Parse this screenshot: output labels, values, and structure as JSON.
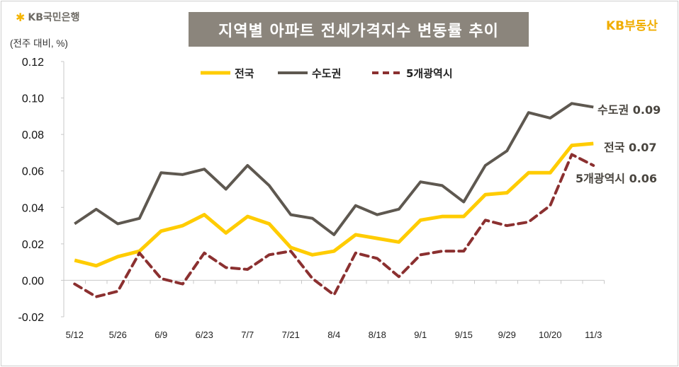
{
  "header": {
    "logo_text": "KB국민은행",
    "title": "지역별 아파트 전세가격지수 변동률 추이",
    "brand": "KB부동산",
    "unit_label": "(전주 대비, %)"
  },
  "colors": {
    "national": "#ffcc00",
    "capital": "#5e5850",
    "metro5": "#8b3030",
    "title_bg": "#8b857c",
    "brand": "#f0ad00"
  },
  "chart_data": {
    "type": "line",
    "title": "지역별 아파트 전세가격지수 변동률 추이",
    "ylabel": "(전주 대비, %)",
    "ylim": [
      -0.02,
      0.12
    ],
    "yticks": [
      "0.12",
      "0.10",
      "0.08",
      "0.06",
      "0.04",
      "0.02",
      "0.00",
      "-0.02"
    ],
    "ytick_values": [
      0.12,
      0.1,
      0.08,
      0.06,
      0.04,
      0.02,
      0.0,
      -0.02
    ],
    "grid": false,
    "legend_position": "top",
    "categories": [
      "5/12",
      "",
      "5/26",
      "",
      "6/9",
      "",
      "6/23",
      "",
      "7/7",
      "",
      "7/21",
      "",
      "8/4",
      "",
      "8/18",
      "",
      "9/1",
      "",
      "9/15",
      "",
      "9/29",
      "",
      "10/20",
      "",
      "11/3"
    ],
    "series": [
      {
        "name": "전국",
        "style": "solid",
        "end_label": "전국 0.07",
        "values": [
          0.011,
          0.008,
          0.013,
          0.016,
          0.027,
          0.03,
          0.036,
          0.026,
          0.035,
          0.031,
          0.018,
          0.014,
          0.016,
          0.025,
          0.023,
          0.021,
          0.033,
          0.035,
          0.035,
          0.047,
          0.048,
          0.059,
          0.059,
          0.074,
          0.075
        ]
      },
      {
        "name": "수도권",
        "style": "solid",
        "end_label": "수도권 0.09",
        "values": [
          0.031,
          0.039,
          0.031,
          0.034,
          0.059,
          0.058,
          0.061,
          0.05,
          0.063,
          0.052,
          0.036,
          0.034,
          0.025,
          0.041,
          0.036,
          0.039,
          0.054,
          0.052,
          0.043,
          0.063,
          0.071,
          0.092,
          0.089,
          0.097,
          0.095
        ]
      },
      {
        "name": "5개광역시",
        "style": "dashed",
        "end_label": "5개광역시 0.06",
        "values": [
          -0.002,
          -0.009,
          -0.006,
          0.015,
          0.001,
          -0.002,
          0.015,
          0.007,
          0.006,
          0.014,
          0.016,
          0.001,
          -0.008,
          0.015,
          0.012,
          0.002,
          0.014,
          0.016,
          0.016,
          0.033,
          0.03,
          0.032,
          0.041,
          0.069,
          0.063
        ]
      }
    ]
  }
}
